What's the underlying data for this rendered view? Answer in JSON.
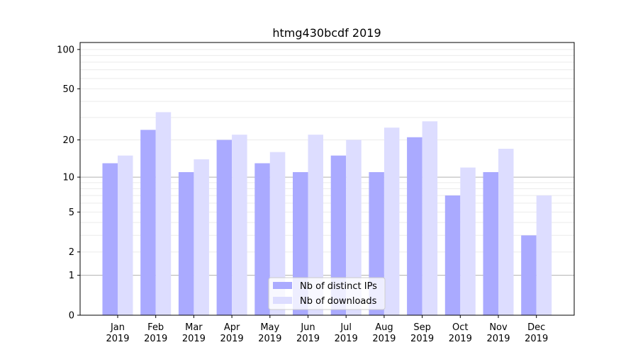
{
  "chart_data": {
    "type": "bar",
    "title": "htmg430bcdf 2019",
    "xlabel": "",
    "ylabel": "",
    "yscale": "symlog (log10(1+y))",
    "ylim": [
      0,
      113
    ],
    "yticks": [
      0,
      1,
      2,
      5,
      10,
      20,
      50,
      100
    ],
    "categories": [
      "Jan\n2019",
      "Feb\n2019",
      "Mar\n2019",
      "Apr\n2019",
      "May\n2019",
      "Jun\n2019",
      "Jul\n2019",
      "Aug\n2019",
      "Sep\n2019",
      "Oct\n2019",
      "Nov\n2019",
      "Dec\n2019"
    ],
    "series": [
      {
        "name": "Nb of distinct IPs",
        "color": "#aaaaff",
        "values": [
          13,
          24,
          11,
          20,
          13,
          11,
          15,
          11,
          21,
          7,
          11,
          3
        ]
      },
      {
        "name": "Nb of downloads",
        "color": "#ddddff",
        "values": [
          15,
          33,
          14,
          22,
          16,
          22,
          20,
          25,
          28,
          12,
          17,
          7
        ]
      }
    ],
    "grid": true,
    "legend": "bottom-center"
  }
}
